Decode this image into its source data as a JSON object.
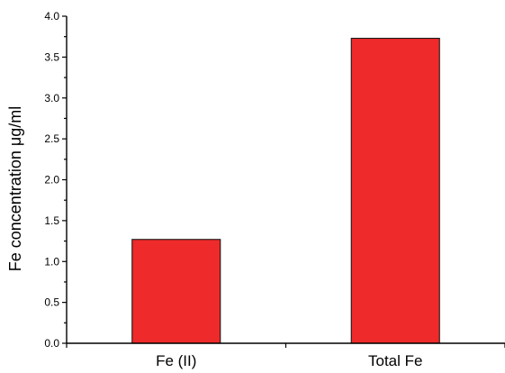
{
  "chart_data": {
    "type": "bar",
    "title": "",
    "xlabel": "",
    "ylabel": "Fe concentration μg/ml",
    "categories": [
      "Fe (II)",
      "Total Fe"
    ],
    "values": [
      1.27,
      3.73
    ],
    "ylim": [
      0,
      4.0
    ],
    "yticks": [
      "0.0",
      "0.5",
      "1.0",
      "1.5",
      "2.0",
      "2.5",
      "3.0",
      "3.5",
      "4.0"
    ],
    "bar_color": "#ee2a2a",
    "grid": false,
    "legend": "none"
  }
}
